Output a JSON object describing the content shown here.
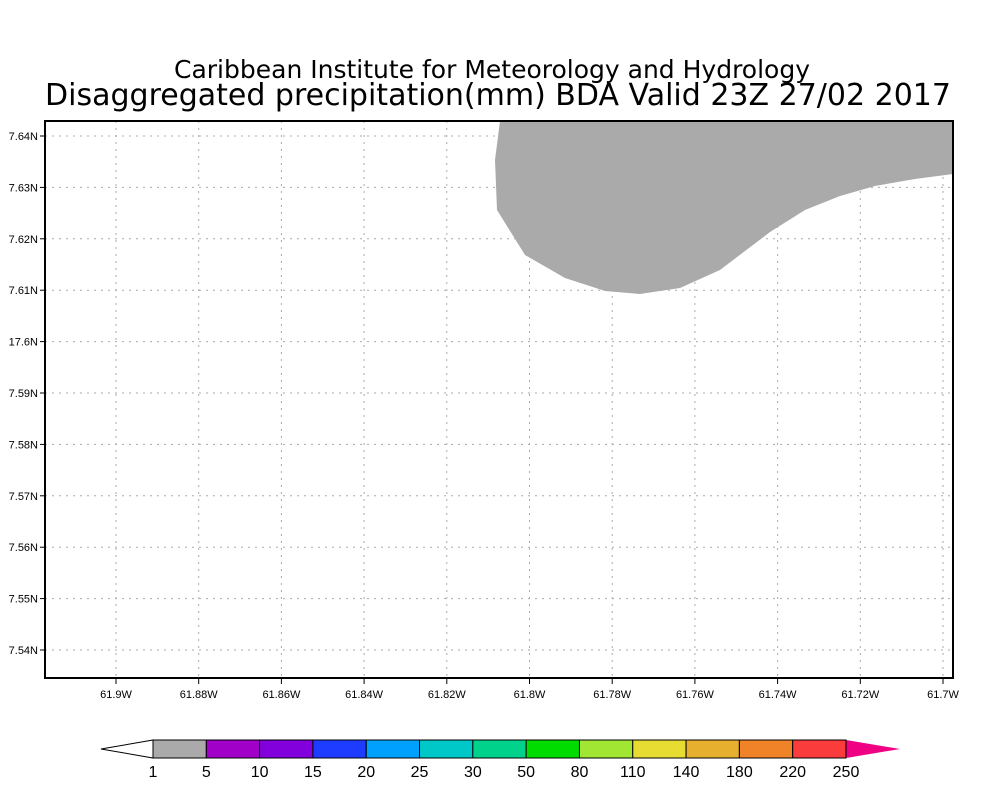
{
  "title": "Caribbean Institute for Meteorology and Hydrology",
  "subtitle": "Disaggregated precipitation(mm) BDA Valid 23Z 27/02 2017",
  "map": {
    "lat_ticks": [
      "7.64N",
      "7.63N",
      "7.62N",
      "7.61N",
      "17.6N",
      "7.59N",
      "7.58N",
      "7.57N",
      "7.56N",
      "7.55N",
      "7.54N"
    ],
    "lon_ticks": [
      "61.9W",
      "61.88W",
      "61.86W",
      "61.84W",
      "61.82W",
      "61.8W",
      "61.78W",
      "61.76W",
      "61.74W",
      "61.72W",
      "61.7W"
    ],
    "shaded_region_class": "1-5 mm",
    "shaded_color": "#aaaaaa"
  },
  "colorbar": {
    "labels": [
      "1",
      "5",
      "10",
      "15",
      "20",
      "25",
      "30",
      "50",
      "80",
      "110",
      "140",
      "180",
      "220",
      "250"
    ],
    "colors": [
      "#aaaaaa",
      "#a000c8",
      "#8200dc",
      "#1e3cff",
      "#00a0ff",
      "#00c8c8",
      "#00d28c",
      "#00dc00",
      "#a0e632",
      "#e6dc32",
      "#e6af2d",
      "#f08228",
      "#fa3c3c"
    ],
    "under_color": "#ffffff",
    "over_color": "#f00082"
  }
}
